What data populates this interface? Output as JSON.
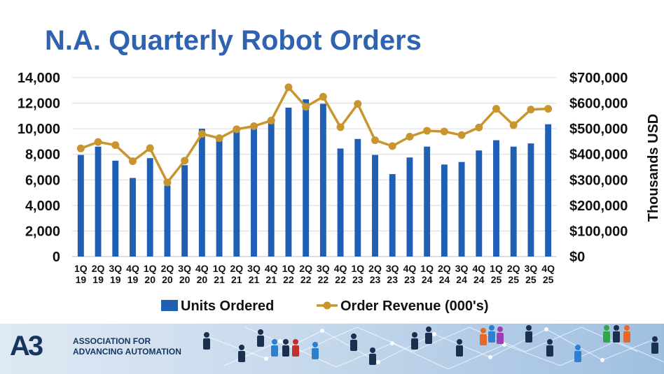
{
  "title": "N.A. Quarterly Robot Orders",
  "footer": {
    "org_line1": "ASSOCIATION FOR",
    "org_line2": "ADVANCING AUTOMATION",
    "logo_mark": "A3"
  },
  "chart_data": {
    "type": "bar+line",
    "title": "N.A. Quarterly Robot Orders",
    "categories": [
      [
        "1Q",
        "19"
      ],
      [
        "2Q",
        "19"
      ],
      [
        "3Q",
        "19"
      ],
      [
        "4Q",
        "19"
      ],
      [
        "1Q",
        "20"
      ],
      [
        "2Q",
        "20"
      ],
      [
        "3Q",
        "20"
      ],
      [
        "4Q",
        "20"
      ],
      [
        "1Q",
        "21"
      ],
      [
        "2Q",
        "21"
      ],
      [
        "3Q",
        "21"
      ],
      [
        "4Q",
        "21"
      ],
      [
        "1Q",
        "22"
      ],
      [
        "2Q",
        "22"
      ],
      [
        "3Q",
        "22"
      ],
      [
        "4Q",
        "22"
      ],
      [
        "1Q",
        "23"
      ],
      [
        "2Q",
        "23"
      ],
      [
        "3Q",
        "23"
      ],
      [
        "4Q",
        "23"
      ],
      [
        "1Q",
        "24"
      ],
      [
        "2Q",
        "24"
      ],
      [
        "3Q",
        "24"
      ],
      [
        "4Q",
        "24"
      ],
      [
        "1Q",
        "25"
      ],
      [
        "2Q",
        "25"
      ],
      [
        "3Q",
        "25"
      ],
      [
        "4Q",
        "25"
      ]
    ],
    "series": [
      {
        "name": "Units Ordered",
        "type": "bar",
        "axis": "left",
        "color": "#1f5fb4",
        "values": [
          7950,
          8600,
          7500,
          6150,
          7700,
          5550,
          7150,
          10000,
          9300,
          9800,
          10050,
          10700,
          11650,
          12300,
          11950,
          8450,
          9200,
          7950,
          6450,
          7750,
          8600,
          7200,
          7400,
          8300,
          9100,
          8600,
          8850,
          10350
        ]
      },
      {
        "name": "Order Revenue (000's)",
        "type": "line",
        "axis": "right",
        "color": "#c9952f",
        "values": [
          423000,
          448000,
          436000,
          373000,
          424000,
          290000,
          375000,
          480000,
          463000,
          498000,
          510000,
          532000,
          662000,
          586000,
          625000,
          506000,
          597000,
          455000,
          432000,
          469000,
          492000,
          489000,
          475000,
          505000,
          578000,
          514000,
          575000,
          578000
        ]
      }
    ],
    "y_left": {
      "min": 0,
      "max": 14000,
      "ticks": [
        0,
        2000,
        4000,
        6000,
        8000,
        10000,
        12000,
        14000
      ],
      "tick_labels": [
        "0",
        "2,000",
        "4,000",
        "6,000",
        "8,000",
        "10,000",
        "12,000",
        "14,000"
      ]
    },
    "y_right": {
      "min": 0,
      "max": 700000,
      "label": "Thousands USD",
      "tick_labels": [
        "$0",
        "$100,000",
        "$200,000",
        "$300,000",
        "$400,000",
        "$500,000",
        "$600,000",
        "$700,000"
      ]
    },
    "grid": true,
    "legend": "bottom"
  }
}
